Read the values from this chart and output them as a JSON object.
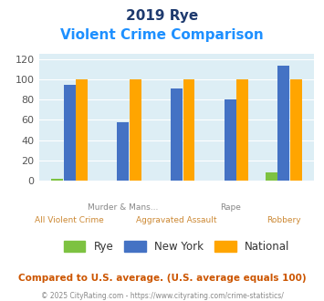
{
  "title_line1": "2019 Rye",
  "title_line2": "Violent Crime Comparison",
  "categories": [
    "All Violent Crime",
    "Murder & Mans...",
    "Aggravated Assault",
    "Rape",
    "Robbery"
  ],
  "cat_labels_row1": [
    "",
    "Murder & Mans...",
    "",
    "Rape",
    ""
  ],
  "cat_labels_row2": [
    "All Violent Crime",
    "",
    "Aggravated Assault",
    "",
    "Robbery"
  ],
  "rye": [
    2,
    0,
    0,
    0,
    8
  ],
  "ny": [
    95,
    58,
    91,
    80,
    114
  ],
  "national": [
    100,
    100,
    100,
    100,
    100
  ],
  "rye_color": "#7dc241",
  "ny_color": "#4472c4",
  "national_color": "#ffa500",
  "bg_color": "#ddeef5",
  "ylim": [
    0,
    125
  ],
  "yticks": [
    0,
    20,
    40,
    60,
    80,
    100,
    120
  ],
  "title_color": "#1e3a6e",
  "subtitle_color": "#1e90ff",
  "footer1": "Compared to U.S. average. (U.S. average equals 100)",
  "footer2": "© 2025 CityRating.com - https://www.cityrating.com/crime-statistics/",
  "footer1_color": "#cc5500",
  "footer2_color": "#888888"
}
